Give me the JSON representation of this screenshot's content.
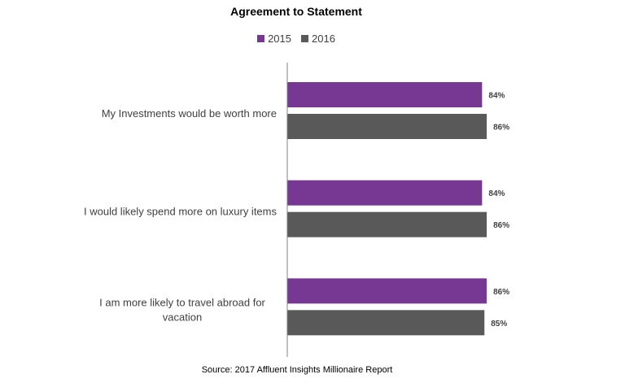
{
  "chart_data": {
    "type": "bar",
    "orientation": "horizontal",
    "title": "Agreement to Statement",
    "categories": [
      [
        "My Investments would be worth more"
      ],
      [
        "I would likely spend more on luxury items"
      ],
      [
        "I am more likely to travel abroad for",
        "vacation"
      ]
    ],
    "series": [
      {
        "name": "2015",
        "color": "#773894",
        "values": [
          84,
          84,
          86
        ],
        "labels": [
          "84%",
          "84%",
          "86%"
        ]
      },
      {
        "name": "2016",
        "color": "#595959",
        "values": [
          86,
          86,
          85
        ],
        "labels": [
          "86%",
          "86%",
          "85%"
        ]
      }
    ],
    "xlim": [
      0,
      100
    ],
    "legend_position": "top-center",
    "grid": false,
    "xaxis_visible": false,
    "source": "Source: 2017 Affluent Insights Millionaire Report"
  }
}
